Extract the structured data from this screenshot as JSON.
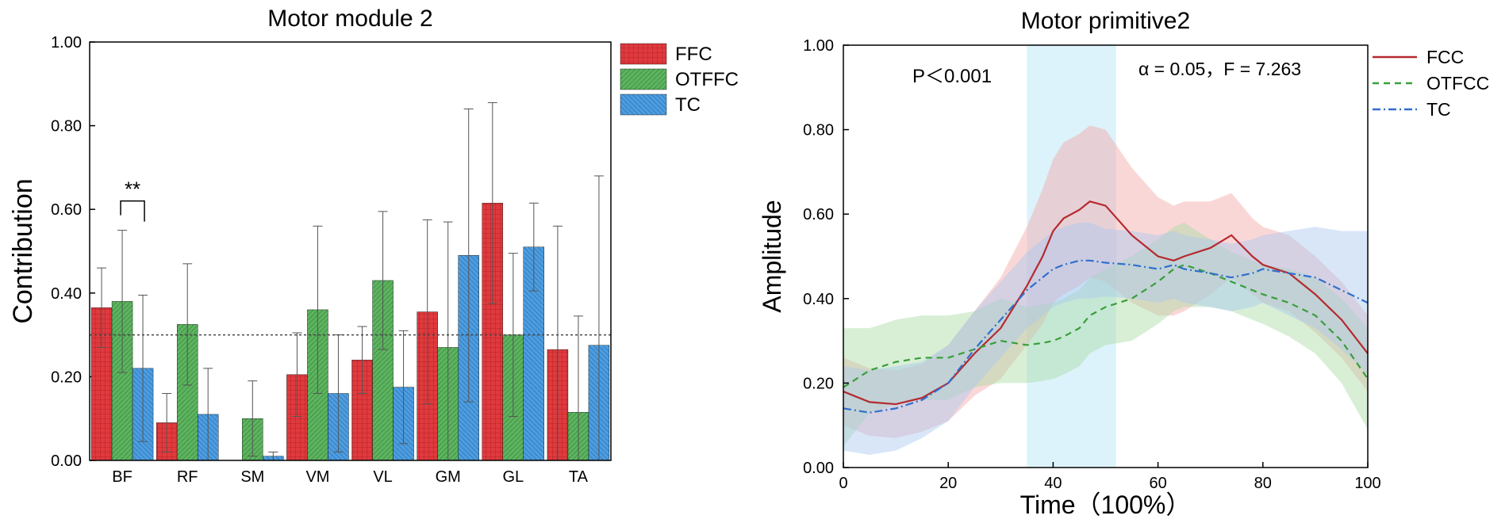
{
  "chart_data": [
    {
      "type": "bar",
      "title": "Motor module 2",
      "xlabel": "",
      "ylabel": "Contribution",
      "ylim": [
        0,
        1.0
      ],
      "yticks": [
        "0.00",
        "0.20",
        "0.40",
        "0.60",
        "0.80",
        "1.00"
      ],
      "categories": [
        "BF",
        "RF",
        "SM",
        "VM",
        "VL",
        "GM",
        "GL",
        "TA"
      ],
      "series": [
        {
          "name": "FFC",
          "color": "#e03a3e",
          "values": [
            0.365,
            0.09,
            0.0,
            0.205,
            0.24,
            0.355,
            0.615,
            0.265
          ],
          "errors": [
            0.095,
            0.07,
            0.0,
            0.1,
            0.08,
            0.22,
            0.24,
            0.295
          ]
        },
        {
          "name": "OTFFC",
          "color": "#5db460",
          "values": [
            0.38,
            0.325,
            0.1,
            0.36,
            0.43,
            0.27,
            0.3,
            0.115
          ],
          "errors": [
            0.17,
            0.145,
            0.09,
            0.2,
            0.165,
            0.3,
            0.195,
            0.23
          ]
        },
        {
          "name": "TC",
          "color": "#4d9de0",
          "values": [
            0.22,
            0.11,
            0.01,
            0.16,
            0.175,
            0.49,
            0.51,
            0.275
          ],
          "errors": [
            0.175,
            0.11,
            0.01,
            0.14,
            0.135,
            0.35,
            0.105,
            0.405
          ]
        }
      ],
      "reference_line": 0.3,
      "annotation": {
        "text": "**",
        "category": "BF"
      },
      "legend": "top-right"
    },
    {
      "type": "line",
      "title": "Motor primitive2",
      "xlabel": "Time（100%）",
      "ylabel": "Amplitude",
      "xlim": [
        0,
        100
      ],
      "ylim": [
        0,
        1.0
      ],
      "xticks": [
        "0",
        "20",
        "40",
        "60",
        "80",
        "100"
      ],
      "yticks": [
        "0.00",
        "0.20",
        "0.40",
        "0.60",
        "0.80",
        "1.00"
      ],
      "x": [
        0,
        5,
        10,
        15,
        20,
        25,
        30,
        35,
        38,
        40,
        42,
        45,
        47,
        50,
        55,
        60,
        63,
        65,
        70,
        74,
        78,
        80,
        85,
        90,
        95,
        100
      ],
      "series": [
        {
          "name": "FCC",
          "color": "#b52a2e",
          "dash": "none",
          "values": [
            0.18,
            0.155,
            0.15,
            0.165,
            0.2,
            0.27,
            0.33,
            0.43,
            0.5,
            0.56,
            0.59,
            0.61,
            0.63,
            0.62,
            0.55,
            0.5,
            0.49,
            0.5,
            0.52,
            0.55,
            0.5,
            0.48,
            0.46,
            0.41,
            0.35,
            0.27
          ],
          "band": [
            0.08,
            0.08,
            0.08,
            0.08,
            0.09,
            0.1,
            0.12,
            0.14,
            0.16,
            0.17,
            0.18,
            0.18,
            0.18,
            0.18,
            0.16,
            0.14,
            0.13,
            0.13,
            0.11,
            0.1,
            0.09,
            0.09,
            0.09,
            0.09,
            0.09,
            0.09
          ]
        },
        {
          "name": "OTFCC",
          "color": "#3a9e3a",
          "dash": "8,6",
          "values": [
            0.19,
            0.23,
            0.25,
            0.26,
            0.26,
            0.28,
            0.3,
            0.29,
            0.295,
            0.3,
            0.31,
            0.33,
            0.36,
            0.38,
            0.4,
            0.44,
            0.47,
            0.48,
            0.46,
            0.44,
            0.42,
            0.41,
            0.39,
            0.36,
            0.3,
            0.21
          ],
          "band": [
            0.14,
            0.1,
            0.1,
            0.1,
            0.1,
            0.09,
            0.1,
            0.09,
            0.09,
            0.09,
            0.09,
            0.09,
            0.09,
            0.09,
            0.1,
            0.1,
            0.1,
            0.1,
            0.08,
            0.07,
            0.07,
            0.07,
            0.08,
            0.09,
            0.1,
            0.12
          ]
        },
        {
          "name": "TC",
          "color": "#2f6fcf",
          "dash": "10,4,2,4",
          "values": [
            0.14,
            0.13,
            0.14,
            0.16,
            0.2,
            0.28,
            0.35,
            0.42,
            0.45,
            0.47,
            0.48,
            0.49,
            0.49,
            0.485,
            0.48,
            0.47,
            0.48,
            0.47,
            0.46,
            0.45,
            0.46,
            0.47,
            0.46,
            0.45,
            0.42,
            0.39
          ],
          "band": [
            0.1,
            0.1,
            0.1,
            0.09,
            0.09,
            0.09,
            0.09,
            0.09,
            0.09,
            0.09,
            0.09,
            0.09,
            0.09,
            0.08,
            0.08,
            0.08,
            0.08,
            0.08,
            0.08,
            0.08,
            0.08,
            0.08,
            0.1,
            0.12,
            0.14,
            0.17
          ]
        }
      ],
      "highlight_range": [
        35,
        52
      ],
      "annotations": [
        "P＜0.001",
        "α = 0.05，F = 7.263"
      ],
      "legend": "top-right"
    }
  ]
}
